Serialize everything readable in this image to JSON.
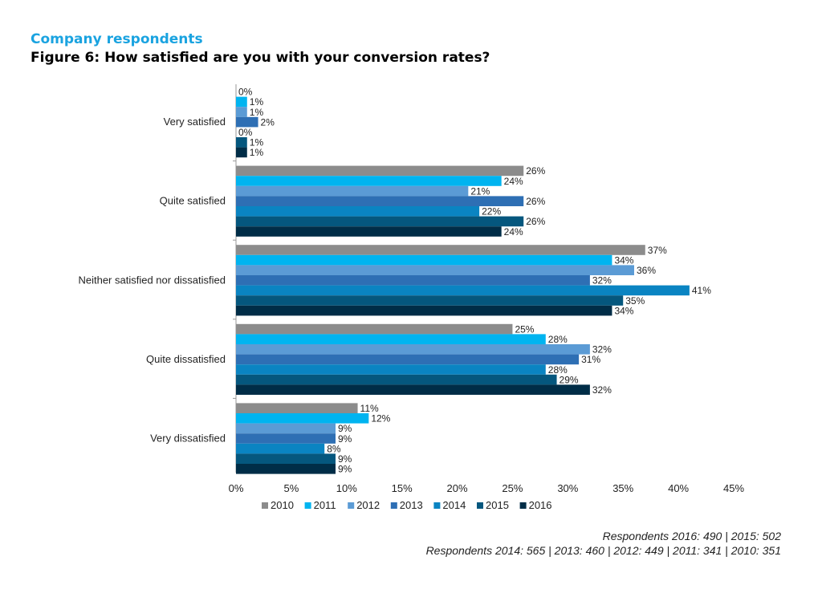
{
  "header": {
    "subtitle": "Company respondents",
    "title": "Figure 6: How satisfied are you with your conversion rates?"
  },
  "footnote": {
    "line1": "Respondents 2016: 490 | 2015: 502",
    "line2": "Respondents 2014: 565 | 2013: 460 | 2012: 449 | 2011: 341 | 2010: 351"
  },
  "chart_data": {
    "type": "bar",
    "orientation": "horizontal",
    "title": "Figure 6: How satisfied are you with your conversion rates?",
    "subtitle": "Company respondents",
    "categories": [
      "Very satisfied",
      "Quite satisfied",
      "Neither satisfied nor dissatisfied",
      "Quite dissatisfied",
      "Very dissatisfied"
    ],
    "value_suffix": "%",
    "xlim": [
      0,
      45
    ],
    "x_ticks": [
      "0%",
      "5%",
      "10%",
      "15%",
      "20%",
      "25%",
      "30%",
      "35%",
      "40%",
      "45%"
    ],
    "grid": false,
    "legend_position": "bottom",
    "series": [
      {
        "name": "2010",
        "color": "#8c8c8c",
        "values": [
          0,
          26,
          37,
          25,
          11
        ]
      },
      {
        "name": "2011",
        "color": "#00b4f0",
        "values": [
          1,
          24,
          34,
          28,
          12
        ]
      },
      {
        "name": "2012",
        "color": "#5b9bd5",
        "values": [
          1,
          21,
          36,
          32,
          9
        ]
      },
      {
        "name": "2013",
        "color": "#2e6fb4",
        "values": [
          2,
          26,
          32,
          31,
          9
        ]
      },
      {
        "name": "2014",
        "color": "#0a84c2",
        "values": [
          0,
          22,
          41,
          28,
          8
        ]
      },
      {
        "name": "2015",
        "color": "#05577e",
        "values": [
          1,
          26,
          35,
          29,
          9
        ]
      },
      {
        "name": "2016",
        "color": "#002d47",
        "values": [
          1,
          24,
          34,
          32,
          9
        ]
      }
    ]
  }
}
